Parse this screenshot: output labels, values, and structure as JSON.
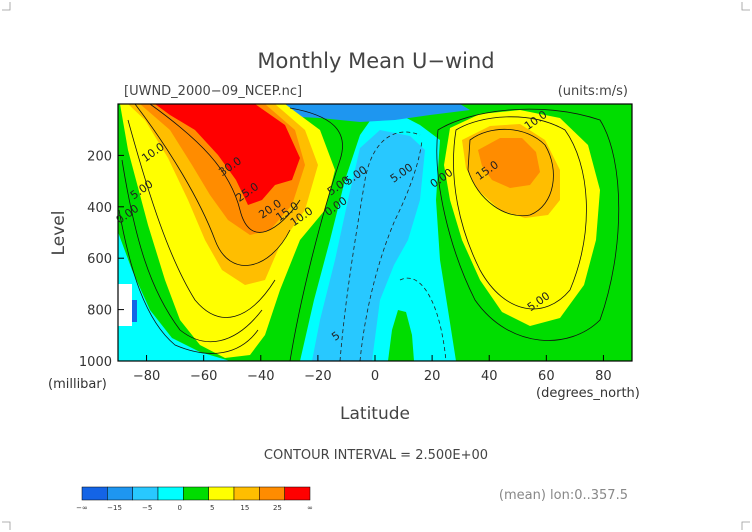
{
  "chart_data": {
    "type": "heatmap",
    "title": "Monthly Mean U−wind",
    "file_label": "[UWND_2000−09_NCEP.nc]",
    "units_label": "(units:m/s)",
    "xlabel": "Latitude",
    "x_unit_label": "(degrees_north)",
    "ylabel": "Level",
    "y_unit_label": "(millibar)",
    "x_ticks": [
      "−80",
      "−60",
      "−40",
      "−20",
      "0",
      "20",
      "40",
      "60",
      "80"
    ],
    "x_tick_values": [
      -80,
      -60,
      -40,
      -20,
      0,
      20,
      40,
      60,
      80
    ],
    "y_ticks": [
      "200",
      "400",
      "600",
      "800",
      "1000"
    ],
    "y_tick_values": [
      200,
      400,
      600,
      800,
      1000
    ],
    "xlim": [
      -90,
      90
    ],
    "ylim": [
      1000,
      0
    ],
    "y_reversed": true,
    "contour_interval_label": "CONTOUR INTERVAL = 2.500E+00",
    "footer_label": "(mean) lon:0..357.5",
    "colorbar": {
      "tick_labels": [
        "−∞",
        "−15",
        "−5",
        "0",
        "5",
        "15",
        "25",
        "∞"
      ],
      "colors": [
        "#1464e6",
        "#1e96f0",
        "#28c8ff",
        "#00ffff",
        "#00dd00",
        "#ffff00",
        "#ffbe00",
        "#ff8c00",
        "#ff0000"
      ]
    },
    "contour_labels": [
      {
        "text": "10.0",
        "lat": -77,
        "lev": 200
      },
      {
        "text": "5.00",
        "lat": -81,
        "lev": 345
      },
      {
        "text": "0.00",
        "lat": -86,
        "lev": 440
      },
      {
        "text": "30.0",
        "lat": -50,
        "lev": 255
      },
      {
        "text": "25.0",
        "lat": -44,
        "lev": 355
      },
      {
        "text": "20.0",
        "lat": -36,
        "lev": 420
      },
      {
        "text": "15.0",
        "lat": -30,
        "lev": 430
      },
      {
        "text": "10.0",
        "lat": -25,
        "lev": 450
      },
      {
        "text": "5.00",
        "lat": -12,
        "lev": 330
      },
      {
        "text": "0.00",
        "lat": -13,
        "lev": 410
      },
      {
        "text": "5.00",
        "lat": -6,
        "lev": 290
      },
      {
        "text": "5.00",
        "lat": 10,
        "lev": 280
      },
      {
        "text": "0.00",
        "lat": 24,
        "lev": 300
      },
      {
        "text": "10.0",
        "lat": 57,
        "lev": 75
      },
      {
        "text": "15.0",
        "lat": 40,
        "lev": 270
      },
      {
        "text": "5.00",
        "lat": 58,
        "lev": 780
      },
      {
        "text": "5",
        "lat": -13,
        "lev": 915
      }
    ]
  }
}
